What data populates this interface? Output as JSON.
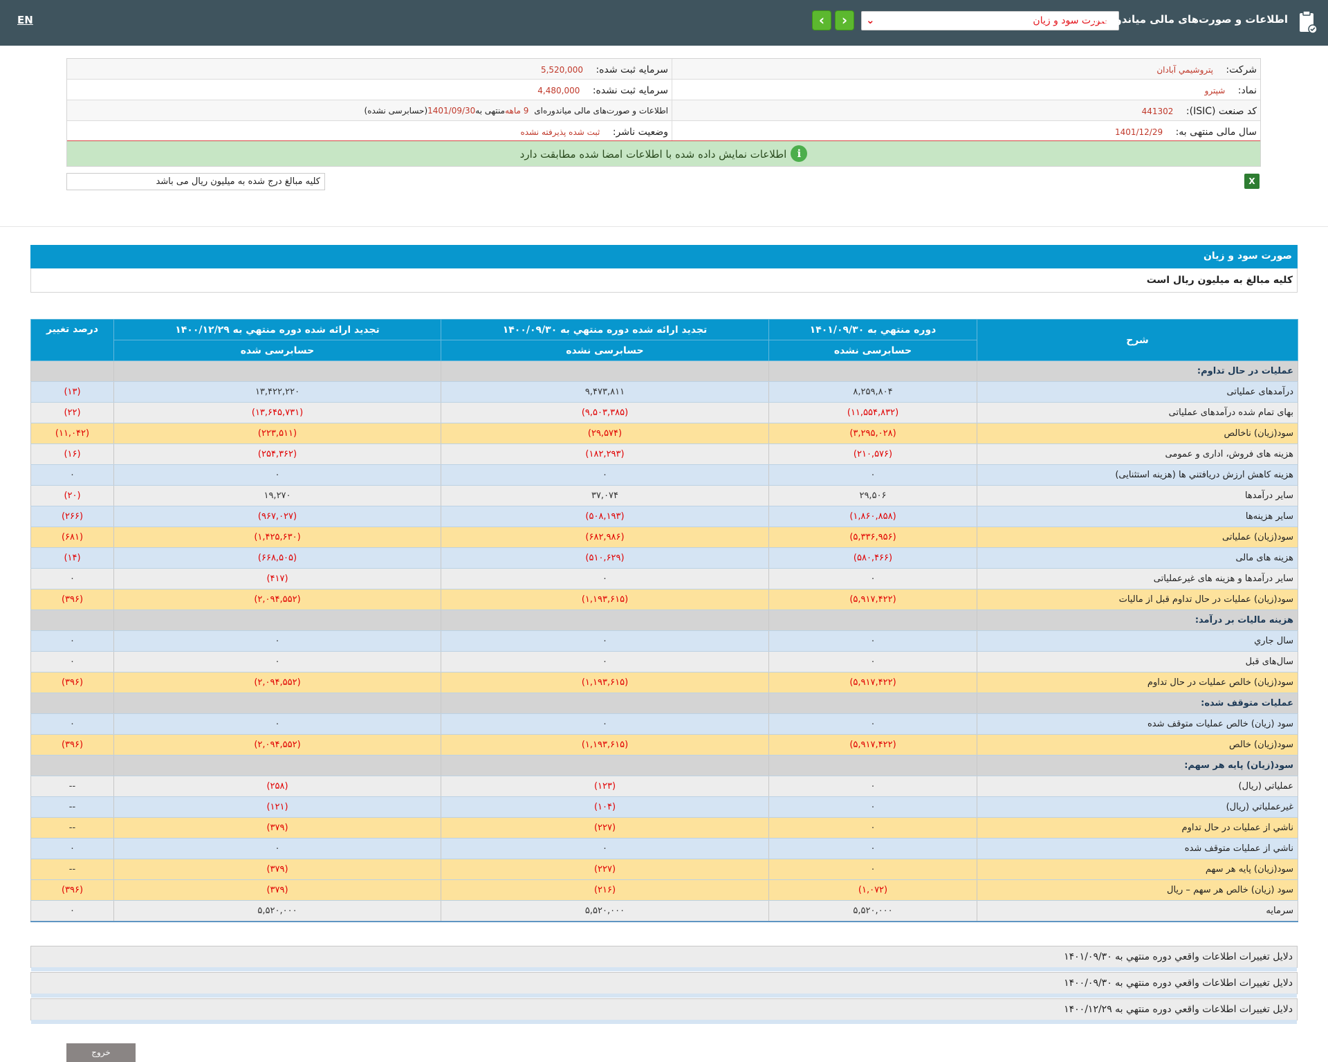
{
  "header": {
    "lang": "EN",
    "app_title": "اطلاعات و صورت‌های مالی میاندوره‌ای",
    "statement_select": "صورت سود و زیان"
  },
  "info": {
    "company_label": "شرکت:",
    "company_value": "پتروشيمي آبادان",
    "capital_reg_label": "سرمایه ثبت شده:",
    "capital_reg_value": "5,520,000",
    "symbol_label": "نماد:",
    "symbol_value": "شپترو",
    "capital_unreg_label": "سرمایه ثبت نشده:",
    "capital_unreg_value": "4,480,000",
    "isic_label": "کد صنعت (ISIC):",
    "isic_value": "441302",
    "report_desc_1": "اطلاعات و صورت‌های مالی میاندوره‌ای",
    "report_desc_period": "9 ماهه",
    "report_desc_2": "منتهی به",
    "report_desc_date": "1401/09/30",
    "report_desc_3": "(حسابرسی نشده)",
    "fy_label": "سال مالی منتهی به:",
    "fy_value": "1401/12/29",
    "publisher_status_label": "وضعیت ناشر:",
    "publisher_status_value": "ثبت شده پذیرفته نشده",
    "alert": "اطلاعات نمایش داده شده با اطلاعات امضا شده مطابقت دارد",
    "unit_note": "کلیه مبالغ درج شده به میلیون ریال می باشد"
  },
  "section": {
    "title": "صورت سود و زیان",
    "subtitle": "کلیه مبالغ به میلیون ریال است"
  },
  "table": {
    "headers": {
      "desc": "شرح",
      "col1": "دوره منتهي به ۱۴۰۱/۰۹/۳۰",
      "col2": "تجدید ارائه شده دوره منتهي به ۱۴۰۰/۰۹/۳۰",
      "col3": "تجدید ارائه شده دوره منتهي به ۱۴۰۰/۱۲/۲۹",
      "col4": "درصد تغییر",
      "col1_audit": "حسابرسی نشده",
      "col2_audit": "حسابرسی نشده",
      "col3_audit": "حسابرسی شده"
    },
    "rows": [
      {
        "type": "sec",
        "desc": "عملیات در حال تداوم:",
        "c1": "",
        "c2": "",
        "c3": "",
        "c4": ""
      },
      {
        "type": "blue",
        "desc": "درآمدهای عملیاتی",
        "c1": "۸,۲۵۹,۸۰۴",
        "c2": "۹,۴۷۳,۸۱۱",
        "c3": "۱۳,۴۲۲,۲۲۰",
        "c4": "(۱۳)"
      },
      {
        "type": "gray",
        "desc": "بهای تمام شده درآمدهای عملیاتی",
        "c1": "(۱۱,۵۵۴,۸۳۲)",
        "c2": "(۹,۵۰۳,۳۸۵)",
        "c3": "(۱۳,۶۴۵,۷۳۱)",
        "c4": "(۲۲)"
      },
      {
        "type": "gold",
        "desc": "سود(زیان) ناخالص",
        "c1": "(۳,۲۹۵,۰۲۸)",
        "c2": "(۲۹,۵۷۴)",
        "c3": "(۲۲۳,۵۱۱)",
        "c4": "(۱۱,۰۴۲)"
      },
      {
        "type": "gray",
        "desc": "هزینه های فروش، اداری و عمومی",
        "c1": "(۲۱۰,۵۷۶)",
        "c2": "(۱۸۲,۲۹۳)",
        "c3": "(۲۵۴,۳۶۲)",
        "c4": "(۱۶)"
      },
      {
        "type": "blue",
        "desc": "هزینه کاهش ارزش دریافتني ها (هزینه استثنایی)",
        "c1": "۰",
        "c2": "۰",
        "c3": "۰",
        "c4": "۰"
      },
      {
        "type": "gray",
        "desc": "سایر درآمدها",
        "c1": "۲۹,۵۰۶",
        "c2": "۳۷,۰۷۴",
        "c3": "۱۹,۲۷۰",
        "c4": "(۲۰)"
      },
      {
        "type": "blue",
        "desc": "سایر هزینه‌ها",
        "c1": "(۱,۸۶۰,۸۵۸)",
        "c2": "(۵۰۸,۱۹۳)",
        "c3": "(۹۶۷,۰۲۷)",
        "c4": "(۲۶۶)"
      },
      {
        "type": "gold",
        "desc": "سود(زیان) عملیاتی",
        "c1": "(۵,۳۳۶,۹۵۶)",
        "c2": "(۶۸۲,۹۸۶)",
        "c3": "(۱,۴۲۵,۶۳۰)",
        "c4": "(۶۸۱)"
      },
      {
        "type": "blue",
        "desc": "هزینه های مالی",
        "c1": "(۵۸۰,۴۶۶)",
        "c2": "(۵۱۰,۶۲۹)",
        "c3": "(۶۶۸,۵۰۵)",
        "c4": "(۱۴)"
      },
      {
        "type": "gray",
        "desc": "سایر درآمدها و هزینه های غیرعملیاتی",
        "c1": "۰",
        "c2": "۰",
        "c3": "(۴۱۷)",
        "c4": "۰"
      },
      {
        "type": "gold",
        "desc": "سود(زیان) عملیات در حال تداوم قبل از مالیات",
        "c1": "(۵,۹۱۷,۴۲۲)",
        "c2": "(۱,۱۹۳,۶۱۵)",
        "c3": "(۲,۰۹۴,۵۵۲)",
        "c4": "(۳۹۶)"
      },
      {
        "type": "sec",
        "desc": "هزینه مالیات بر درآمد:",
        "c1": "",
        "c2": "",
        "c3": "",
        "c4": ""
      },
      {
        "type": "blue",
        "desc": "سال جاري",
        "c1": "۰",
        "c2": "۰",
        "c3": "۰",
        "c4": "۰"
      },
      {
        "type": "gray",
        "desc": "سال‌های قبل",
        "c1": "۰",
        "c2": "۰",
        "c3": "۰",
        "c4": "۰"
      },
      {
        "type": "gold",
        "desc": "سود(زیان) خالص عملیات در حال تداوم",
        "c1": "(۵,۹۱۷,۴۲۲)",
        "c2": "(۱,۱۹۳,۶۱۵)",
        "c3": "(۲,۰۹۴,۵۵۲)",
        "c4": "(۳۹۶)"
      },
      {
        "type": "sec",
        "desc": "عملیات متوقف شده:",
        "c1": "",
        "c2": "",
        "c3": "",
        "c4": ""
      },
      {
        "type": "blue",
        "desc": "سود (زیان) خالص عملیات متوقف شده",
        "c1": "۰",
        "c2": "۰",
        "c3": "۰",
        "c4": "۰"
      },
      {
        "type": "gold",
        "desc": "سود(زیان) خالص",
        "c1": "(۵,۹۱۷,۴۲۲)",
        "c2": "(۱,۱۹۳,۶۱۵)",
        "c3": "(۲,۰۹۴,۵۵۲)",
        "c4": "(۳۹۶)"
      },
      {
        "type": "sec",
        "desc": "سود(زیان) پایه هر سهم:",
        "c1": "",
        "c2": "",
        "c3": "",
        "c4": ""
      },
      {
        "type": "gray",
        "desc": "عملیاتي (ریال)",
        "c1": "۰",
        "c2": "(۱۲۳)",
        "c3": "(۲۵۸)",
        "c4": "--"
      },
      {
        "type": "blue",
        "desc": "غیرعملیاتي (ریال)",
        "c1": "۰",
        "c2": "(۱۰۴)",
        "c3": "(۱۲۱)",
        "c4": "--"
      },
      {
        "type": "gold",
        "desc": "ناشي از عملیات در حال تداوم",
        "c1": "۰",
        "c2": "(۲۲۷)",
        "c3": "(۳۷۹)",
        "c4": "--"
      },
      {
        "type": "blue",
        "desc": "ناشي از عملیات متوقف شده",
        "c1": "۰",
        "c2": "۰",
        "c3": "۰",
        "c4": "۰"
      },
      {
        "type": "gold",
        "desc": "سود(زیان) پایه هر سهم",
        "c1": "۰",
        "c2": "(۲۲۷)",
        "c3": "(۳۷۹)",
        "c4": "--"
      },
      {
        "type": "gold",
        "desc": "سود (زیان) خالص هر سهم – ریال",
        "c1": "(۱,۰۷۲)",
        "c2": "(۲۱۶)",
        "c3": "(۳۷۹)",
        "c4": "(۳۹۶)"
      },
      {
        "type": "gray",
        "desc": "سرمایه",
        "c1": "۵,۵۲۰,۰۰۰",
        "c2": "۵,۵۲۰,۰۰۰",
        "c3": "۵,۵۲۰,۰۰۰",
        "c4": "۰"
      }
    ]
  },
  "reasons": [
    "دلایل تغییرات اطلاعات واقعي دوره منتهي به ۱۴۰۱/۰۹/۳۰",
    "دلایل تغییرات اطلاعات واقعي دوره منتهي به ۱۴۰۰/۰۹/۳۰",
    "دلایل تغییرات اطلاعات واقعي دوره منتهي به ۱۴۰۰/۱۲/۲۹"
  ],
  "exit_label": "خروج",
  "colors": {
    "topbar": "#3f545e",
    "accent_blue": "#0897ce",
    "negative": "#e00000",
    "nav_green": "#5cb82f",
    "row_gold": "#fde29c",
    "row_blue": "#d5e4f3"
  }
}
